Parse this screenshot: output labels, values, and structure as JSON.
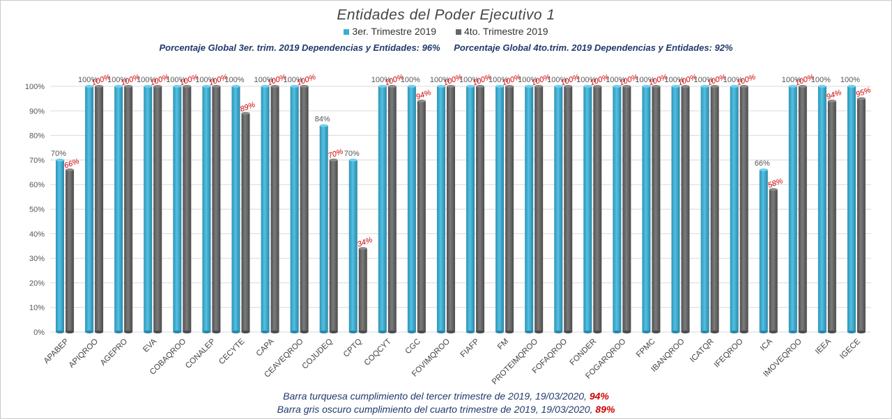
{
  "chart_data": {
    "type": "bar",
    "title": "Entidades del Poder Ejecutivo 1",
    "categories": [
      "APABEP",
      "APIQROO",
      "AGEPRO",
      "EVA",
      "COBAQROO",
      "CONALEP",
      "CECYTE",
      "CAPA",
      "CEAVEQROO",
      "COJUDEQ",
      "CPTQ",
      "COQCYT",
      "CGC",
      "FOVIMQROO",
      "FIAFP",
      "FM",
      "PROTEIMQROO",
      "FOFAQROO",
      "FONDER",
      "FOGARQROO",
      "FPMC",
      "IBANQROO",
      "ICATQR",
      "IFEQROO",
      "ICA",
      "IMOVEQROO",
      "IEEA",
      "IGECE"
    ],
    "series": [
      {
        "name": "3er. Trimestre 2019",
        "color": "#3aaed2",
        "values": [
          70,
          100,
          100,
          100,
          100,
          100,
          100,
          100,
          100,
          84,
          70,
          100,
          100,
          100,
          100,
          100,
          100,
          100,
          100,
          100,
          100,
          100,
          100,
          100,
          66,
          100,
          100,
          100
        ]
      },
      {
        "name": "4to. Trimestre 2019",
        "color": "#666666",
        "values": [
          66,
          100,
          100,
          100,
          100,
          100,
          89,
          100,
          100,
          70,
          34,
          100,
          94,
          100,
          100,
          100,
          100,
          100,
          100,
          100,
          100,
          100,
          100,
          100,
          58,
          100,
          94,
          95
        ]
      }
    ],
    "ylim": [
      0,
      100
    ],
    "yticks": [
      "0%",
      "10%",
      "20%",
      "30%",
      "40%",
      "50%",
      "60%",
      "70%",
      "80%",
      "90%",
      "100%"
    ],
    "grid": true,
    "legend_position": "top-center"
  },
  "global_text": {
    "q3": "Porcentaje Global 3er. trim.  2019 Dependencias y Entidades: 96%",
    "q4": "Porcentaje Global  4to.trim.   2019 Dependencias y Entidades: 92%"
  },
  "footer": {
    "line1_text": "Barra turquesa  cumplimiento  del tercer trimestre de 2019,    19/03/2020, ",
    "line1_value": "94%",
    "line2_text": "Barra gris oscuro  cumplimiento  del cuarto trimestre de 2019,  19/03/2020, ",
    "line2_value": "89%"
  }
}
